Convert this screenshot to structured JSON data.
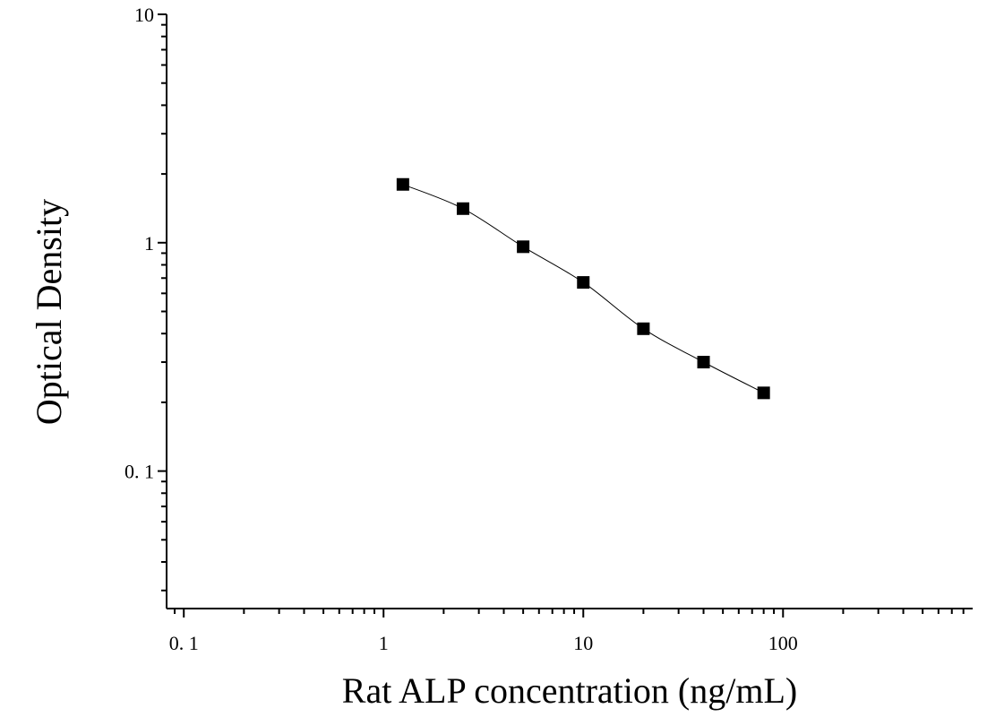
{
  "chart_data": {
    "type": "scatter",
    "title": "",
    "xlabel": "Rat ALP concentration (ng/mL)",
    "ylabel": "Optical Density",
    "x_scale": "log",
    "y_scale": "log",
    "xlim": [
      0.082,
      890
    ],
    "ylim": [
      0.025,
      10
    ],
    "x_ticks": [
      {
        "value": 0.1,
        "label": "0. 1"
      },
      {
        "value": 1,
        "label": "1"
      },
      {
        "value": 10,
        "label": "10"
      },
      {
        "value": 100,
        "label": "100"
      }
    ],
    "y_ticks": [
      {
        "value": 0.1,
        "label": "0. 1"
      },
      {
        "value": 1,
        "label": "1"
      },
      {
        "value": 10,
        "label": "10"
      }
    ],
    "grid": false,
    "series": [
      {
        "x": [
          1.25,
          2.5,
          5,
          10,
          20,
          40,
          80
        ],
        "y": [
          1.8,
          1.41,
          0.96,
          0.67,
          0.42,
          0.3,
          0.22
        ],
        "marker": "square",
        "color": "#000000",
        "fit_line": true
      }
    ]
  }
}
